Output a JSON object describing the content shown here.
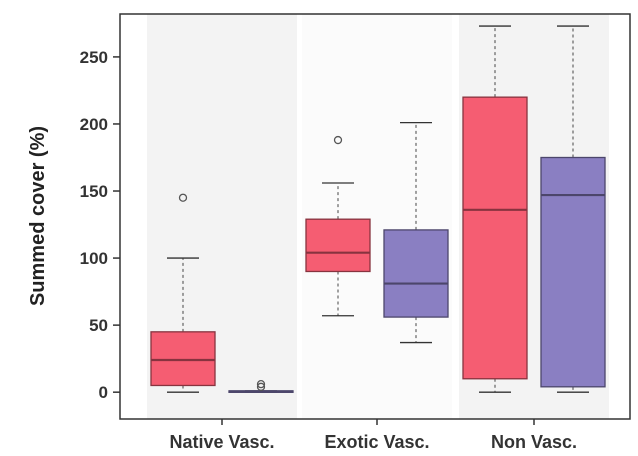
{
  "chart_data": {
    "type": "box",
    "title": "",
    "xlabel": "",
    "ylabel": "Summed cover (%)",
    "ylim": [
      -20,
      282
    ],
    "yticks": [
      0,
      50,
      100,
      150,
      200,
      250
    ],
    "grid": false,
    "legend": "none",
    "categories": [
      "Native Vasc.",
      "Exotic Vasc.",
      "Non Vasc."
    ],
    "series": [
      {
        "color": "#f55d72",
        "boxes": [
          {
            "category": "Native Vasc.",
            "whisker_low": 0,
            "q1": 5,
            "median": 24,
            "q3": 45,
            "whisker_high": 100,
            "outliers": [
              145
            ]
          },
          {
            "category": "Exotic Vasc.",
            "whisker_low": 57,
            "q1": 90,
            "median": 104,
            "q3": 129,
            "whisker_high": 156,
            "outliers": [
              188
            ]
          },
          {
            "category": "Non Vasc.",
            "whisker_low": 0,
            "q1": 10,
            "median": 136,
            "q3": 220,
            "whisker_high": 273,
            "outliers": []
          }
        ]
      },
      {
        "color": "#8a7fc2",
        "boxes": [
          {
            "category": "Native Vasc.",
            "whisker_low": 0,
            "q1": 0,
            "median": 0.5,
            "q3": 1,
            "whisker_high": 1,
            "outliers": [
              4,
              6
            ]
          },
          {
            "category": "Exotic Vasc.",
            "whisker_low": 37,
            "q1": 56,
            "median": 81,
            "q3": 121,
            "whisker_high": 201,
            "outliers": []
          },
          {
            "category": "Non Vasc.",
            "whisker_low": 0,
            "q1": 4,
            "median": 147,
            "q3": 175,
            "whisker_high": 273,
            "outliers": []
          }
        ]
      }
    ]
  }
}
